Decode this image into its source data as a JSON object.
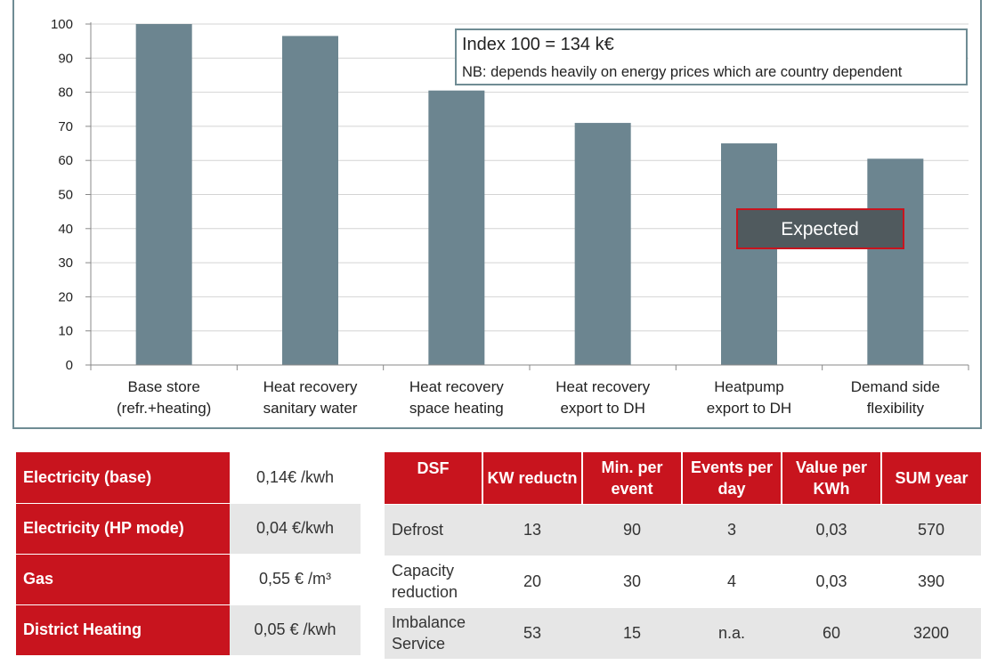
{
  "chart_data": {
    "type": "bar",
    "categories": [
      [
        "Base store",
        "(refr.+heating)"
      ],
      [
        "Heat recovery",
        "sanitary water"
      ],
      [
        "Heat recovery",
        "space heating"
      ],
      [
        "Heat recovery",
        "export to DH"
      ],
      [
        "Heatpump",
        "export to DH"
      ],
      [
        "Demand side",
        "flexibility"
      ]
    ],
    "values": [
      100,
      96.5,
      80.5,
      71,
      65,
      60.5
    ],
    "ylim": [
      0,
      100
    ],
    "yticks": [
      0,
      10,
      20,
      30,
      40,
      50,
      60,
      70,
      80,
      90,
      100
    ],
    "title": "",
    "xlabel": "",
    "ylabel": "",
    "grid": true,
    "bar_color": "#6c8590",
    "annotation": {
      "title": "Index 100 = 134 k€",
      "note": "NB: depends heavily on energy prices which are country dependent"
    },
    "badge": {
      "text": "Expected",
      "fill": "#505a5e",
      "border": "#c8141e"
    }
  },
  "prices": {
    "rows": [
      {
        "label": "Electricity (base)",
        "value": "0,14€ /kwh"
      },
      {
        "label": "Electricity (HP mode)",
        "value": "0,04 €/kwh"
      },
      {
        "label": "Gas",
        "value": "0,55 € /m³"
      },
      {
        "label": "District Heating",
        "value": "0,05 € /kwh"
      }
    ]
  },
  "dsf": {
    "headers": [
      "DSF",
      "KW reductn",
      "Min. per event",
      "Events per day",
      "Value per KWh",
      "SUM year"
    ],
    "rows": [
      [
        "Defrost",
        "13",
        "90",
        "3",
        "0,03",
        "570"
      ],
      [
        "Capacity reduction",
        "20",
        "30",
        "4",
        "0,03",
        "390"
      ],
      [
        "Imbalance Service",
        "53",
        "15",
        "n.a.",
        "60",
        "3200"
      ]
    ]
  },
  "colors": {
    "accent": "#c8141e",
    "frame": "#6f8c94",
    "row_alt": "#e6e6e6"
  }
}
